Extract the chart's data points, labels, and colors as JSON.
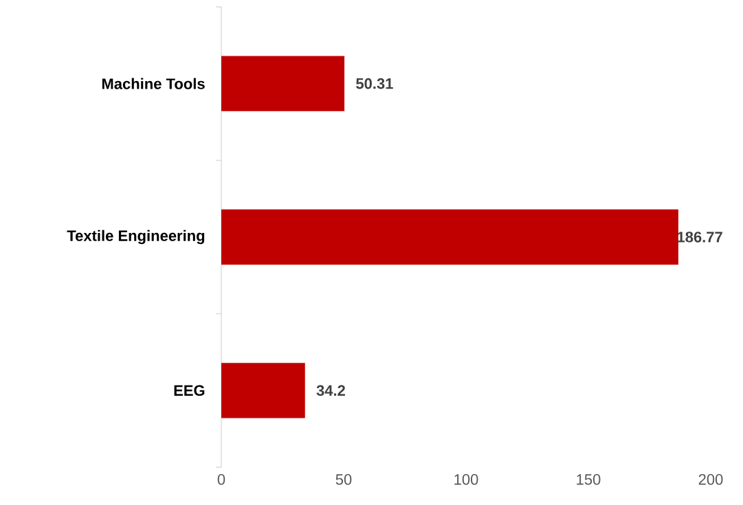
{
  "chart_data": {
    "type": "bar",
    "orientation": "horizontal",
    "categories": [
      "Machine Tools",
      "Textile Engineering",
      "EEG"
    ],
    "values": [
      50.31,
      186.77,
      34.2
    ],
    "color": "#c00000",
    "xlim": [
      0,
      200
    ],
    "xticks": [
      0,
      50,
      100,
      150,
      200
    ],
    "data_labels": true,
    "grid": false
  }
}
